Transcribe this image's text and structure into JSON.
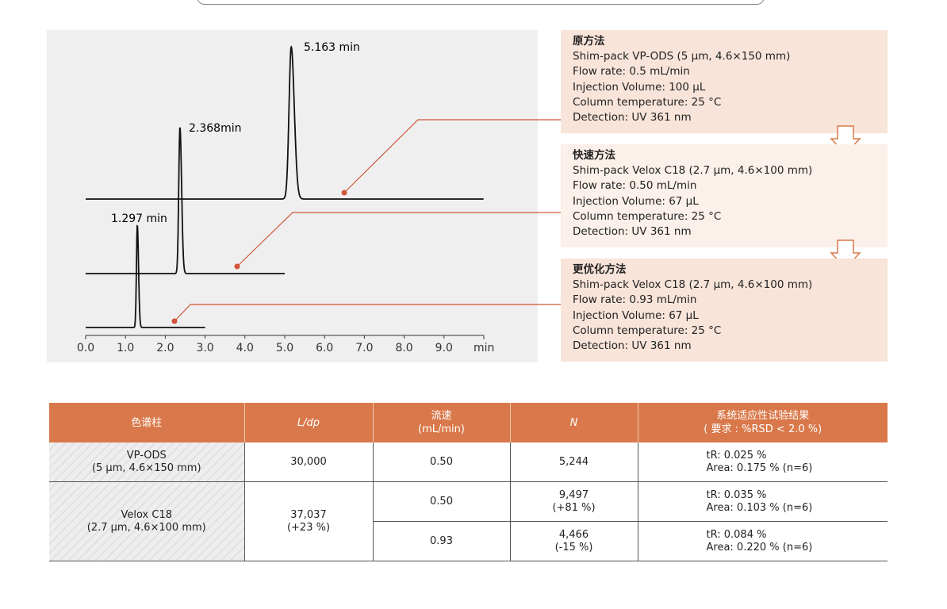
{
  "chart_data": {
    "type": "line",
    "xlabel": "min",
    "xlim": [
      0,
      10
    ],
    "x_ticks": [
      "0.0",
      "1.0",
      "2.0",
      "3.0",
      "4.0",
      "5.0",
      "6.0",
      "7.0",
      "8.0",
      "9.0"
    ],
    "grid": false,
    "series": [
      {
        "peak_rt": 5.163,
        "label": "5.163 min",
        "run_end": 10.0,
        "relative_height": 1.0
      },
      {
        "peak_rt": 2.368,
        "label": "2.368min",
        "run_end": 5.0,
        "relative_height": 0.96
      },
      {
        "peak_rt": 1.297,
        "label": "1.297 min",
        "run_end": 3.0,
        "relative_height": 0.67
      }
    ],
    "connector_color": "#d0553a"
  },
  "methods": [
    {
      "title": "原方法",
      "lines": [
        "Shim-pack VP-ODS (5 µm, 4.6×150 mm)",
        "Flow rate: 0.5 mL/min",
        "Injection Volume: 100 µL",
        "Column temperature: 25 °C",
        "Detection: UV 361 nm"
      ]
    },
    {
      "title": "快速方法",
      "lines": [
        "Shim-pack Velox C18 (2.7 µm, 4.6×100 mm)",
        "Flow rate: 0.50 mL/min",
        "Injection Volume: 67 µL",
        "Column temperature: 25 °C",
        "Detection: UV 361 nm"
      ]
    },
    {
      "title": "更优化方法",
      "lines": [
        "Shim-pack Velox C18 (2.7 µm, 4.6×100 mm)",
        "Flow rate: 0.93 mL/min",
        "Injection Volume: 67 µL",
        "Column temperature: 25 °C",
        "Detection: UV 361 nm"
      ]
    }
  ],
  "table": {
    "headers": {
      "column": "色谱柱",
      "ldp": "L/dp",
      "flow": "流速",
      "flow_unit": "(mL/min)",
      "n": "N",
      "result": "系统适应性试验结果",
      "result_req": "( 要求 : %RSD < 2.0 %)"
    },
    "rows": [
      {
        "col1": "VP-ODS",
        "col2": "(5 µm, 4.6×150 mm)",
        "ldp": "30,000",
        "flow": "0.50",
        "n": "5,244",
        "tr": "tR: 0.025 %",
        "area": "Area: 0.175 %  (n=6)"
      },
      {
        "col1": "Velox C18",
        "col2": "(2.7 µm, 4.6×100 mm)",
        "ldp": "37,037",
        "ldp2": "(+23 %)",
        "flow": "0.50",
        "n": "9,497",
        "n2": "(+81 %)",
        "tr": "tR: 0.035 %",
        "area": "Area: 0.103 % (n=6)"
      },
      {
        "flow": "0.93",
        "n": "4,466",
        "n2": "(-15 %)",
        "tr": "tR: 0.084 %",
        "area": "Area: 0.220 % (n=6)"
      }
    ]
  },
  "colors": {
    "header": "#d9784a",
    "panel": "#f8e4d9",
    "panel_alt": "#fbf0ea"
  }
}
